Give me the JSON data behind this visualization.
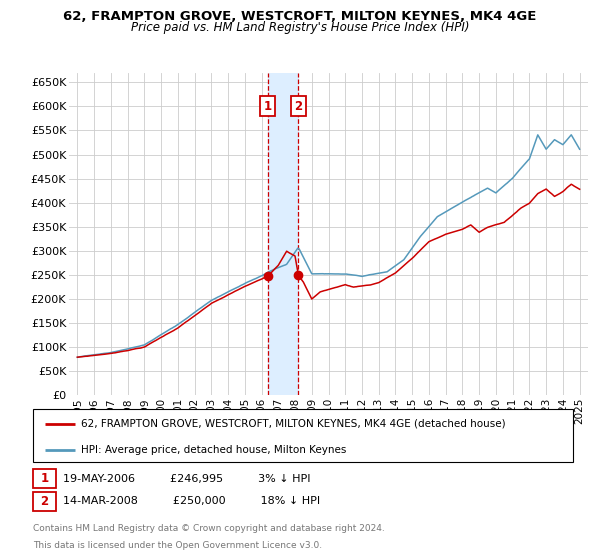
{
  "title1": "62, FRAMPTON GROVE, WESTCROFT, MILTON KEYNES, MK4 4GE",
  "title2": "Price paid vs. HM Land Registry's House Price Index (HPI)",
  "ylabel_ticks": [
    "£0",
    "£50K",
    "£100K",
    "£150K",
    "£200K",
    "£250K",
    "£300K",
    "£350K",
    "£400K",
    "£450K",
    "£500K",
    "£550K",
    "£600K",
    "£650K"
  ],
  "ytick_values": [
    0,
    50000,
    100000,
    150000,
    200000,
    250000,
    300000,
    350000,
    400000,
    450000,
    500000,
    550000,
    600000,
    650000
  ],
  "ylim": [
    0,
    670000
  ],
  "xlim_start": 1994.5,
  "xlim_end": 2025.5,
  "legend1": "62, FRAMPTON GROVE, WESTCROFT, MILTON KEYNES, MK4 4GE (detached house)",
  "legend2": "HPI: Average price, detached house, Milton Keynes",
  "sale1_date": 2006.38,
  "sale1_price": 246995,
  "sale2_date": 2008.2,
  "sale2_price": 250000,
  "sale1_row": "19-MAY-2006          £246,995          3% ↓ HPI",
  "sale2_row": "14-MAR-2008          £250,000          18% ↓ HPI",
  "red_color": "#cc0000",
  "blue_color": "#5599bb",
  "shade_color": "#ddeeff",
  "grid_color": "#cccccc",
  "footer_line1": "Contains HM Land Registry data © Crown copyright and database right 2024.",
  "footer_line2": "This data is licensed under the Open Government Licence v3.0."
}
